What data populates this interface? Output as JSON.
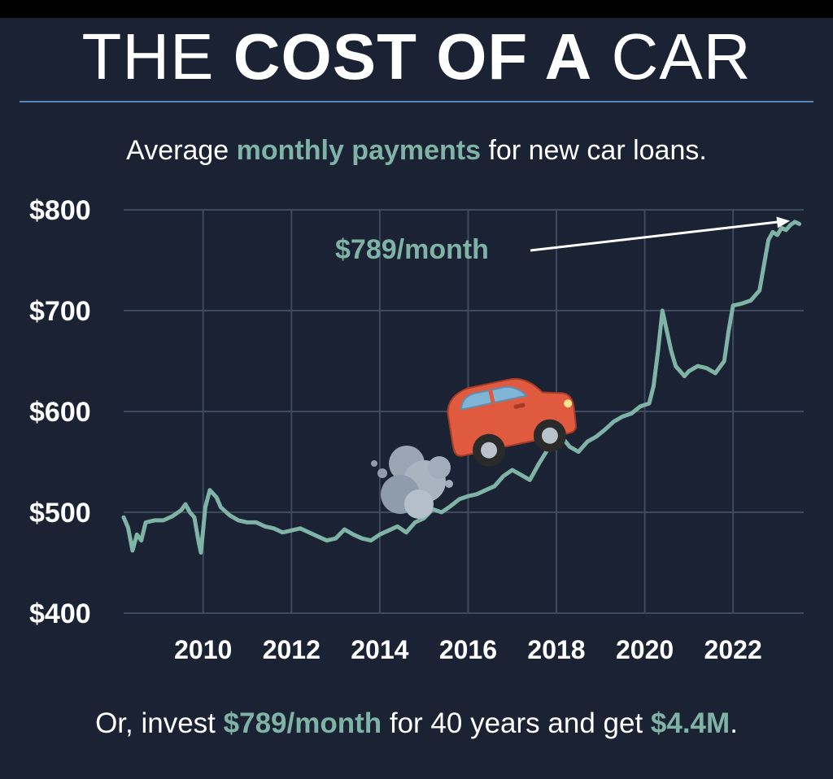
{
  "title": {
    "part1": "THE ",
    "part2": "COST OF A",
    "part3": " CAR"
  },
  "subtitle": {
    "part1": "Average ",
    "highlight": "monthly payments",
    "part2": " for new car loans."
  },
  "footer": {
    "part1": "Or, invest ",
    "highlight1": "$789/month",
    "part2": " for 40 years and get ",
    "highlight2": "$4.4M",
    "part3": "."
  },
  "colors": {
    "background": "#1a2233",
    "accent": "#7fb3a6",
    "grid": "#3e4a5e",
    "rule": "#5b86b8"
  },
  "icons": {
    "car": "red-car-emoji",
    "exhaust": "exhaust-cloud"
  },
  "chart_data": {
    "type": "line",
    "title": "THE COST OF A CAR",
    "subtitle": "Average monthly payments for new car loans.",
    "xlabel": "",
    "ylabel": "",
    "ylim": [
      400,
      800
    ],
    "xlim": [
      2008.2,
      2023.6
    ],
    "yticks": [
      400,
      500,
      600,
      700,
      800
    ],
    "ytick_labels": [
      "$400",
      "$500",
      "$600",
      "$700",
      "$800"
    ],
    "xticks": [
      2010,
      2012,
      2014,
      2016,
      2018,
      2020,
      2022
    ],
    "xtick_labels": [
      "2010",
      "2012",
      "2014",
      "2016",
      "2018",
      "2020",
      "2022"
    ],
    "grid": true,
    "annotation": {
      "text": "$789/month",
      "x": 2023.4,
      "y": 789
    },
    "series": [
      {
        "values": [
          [
            2008.2,
            495
          ],
          [
            2008.3,
            485
          ],
          [
            2008.4,
            462
          ],
          [
            2008.5,
            478
          ],
          [
            2008.6,
            472
          ],
          [
            2008.7,
            490
          ],
          [
            2008.9,
            492
          ],
          [
            2009.1,
            492
          ],
          [
            2009.3,
            496
          ],
          [
            2009.5,
            502
          ],
          [
            2009.6,
            508
          ],
          [
            2009.7,
            500
          ],
          [
            2009.8,
            495
          ],
          [
            2009.9,
            470
          ],
          [
            2009.95,
            460
          ],
          [
            2010.05,
            505
          ],
          [
            2010.15,
            522
          ],
          [
            2010.3,
            515
          ],
          [
            2010.4,
            505
          ],
          [
            2010.6,
            497
          ],
          [
            2010.8,
            492
          ],
          [
            2011.0,
            490
          ],
          [
            2011.2,
            490
          ],
          [
            2011.4,
            486
          ],
          [
            2011.6,
            484
          ],
          [
            2011.8,
            480
          ],
          [
            2012.0,
            482
          ],
          [
            2012.2,
            484
          ],
          [
            2012.4,
            480
          ],
          [
            2012.6,
            476
          ],
          [
            2012.8,
            472
          ],
          [
            2013.0,
            474
          ],
          [
            2013.2,
            483
          ],
          [
            2013.4,
            478
          ],
          [
            2013.6,
            474
          ],
          [
            2013.8,
            472
          ],
          [
            2014.0,
            478
          ],
          [
            2014.2,
            482
          ],
          [
            2014.4,
            486
          ],
          [
            2014.6,
            480
          ],
          [
            2014.8,
            490
          ],
          [
            2015.0,
            494
          ],
          [
            2015.2,
            503
          ],
          [
            2015.4,
            500
          ],
          [
            2015.6,
            506
          ],
          [
            2015.8,
            513
          ],
          [
            2016.0,
            516
          ],
          [
            2016.2,
            518
          ],
          [
            2016.4,
            522
          ],
          [
            2016.6,
            526
          ],
          [
            2016.8,
            536
          ],
          [
            2017.0,
            542
          ],
          [
            2017.2,
            537
          ],
          [
            2017.4,
            532
          ],
          [
            2017.6,
            548
          ],
          [
            2017.8,
            562
          ],
          [
            2018.0,
            572
          ],
          [
            2018.1,
            576
          ],
          [
            2018.3,
            565
          ],
          [
            2018.5,
            560
          ],
          [
            2018.7,
            570
          ],
          [
            2018.9,
            575
          ],
          [
            2019.1,
            582
          ],
          [
            2019.3,
            590
          ],
          [
            2019.5,
            595
          ],
          [
            2019.7,
            598
          ],
          [
            2019.9,
            605
          ],
          [
            2020.1,
            608
          ],
          [
            2020.2,
            625
          ],
          [
            2020.3,
            660
          ],
          [
            2020.4,
            700
          ],
          [
            2020.5,
            680
          ],
          [
            2020.6,
            660
          ],
          [
            2020.7,
            645
          ],
          [
            2020.8,
            640
          ],
          [
            2020.9,
            635
          ],
          [
            2021.0,
            640
          ],
          [
            2021.2,
            645
          ],
          [
            2021.4,
            643
          ],
          [
            2021.6,
            638
          ],
          [
            2021.8,
            650
          ],
          [
            2021.9,
            680
          ],
          [
            2022.0,
            705
          ],
          [
            2022.2,
            707
          ],
          [
            2022.4,
            710
          ],
          [
            2022.5,
            715
          ],
          [
            2022.6,
            720
          ],
          [
            2022.7,
            745
          ],
          [
            2022.8,
            770
          ],
          [
            2022.9,
            778
          ],
          [
            2023.0,
            775
          ],
          [
            2023.1,
            782
          ],
          [
            2023.2,
            780
          ],
          [
            2023.3,
            785
          ],
          [
            2023.4,
            788
          ],
          [
            2023.5,
            786
          ]
        ]
      }
    ]
  }
}
